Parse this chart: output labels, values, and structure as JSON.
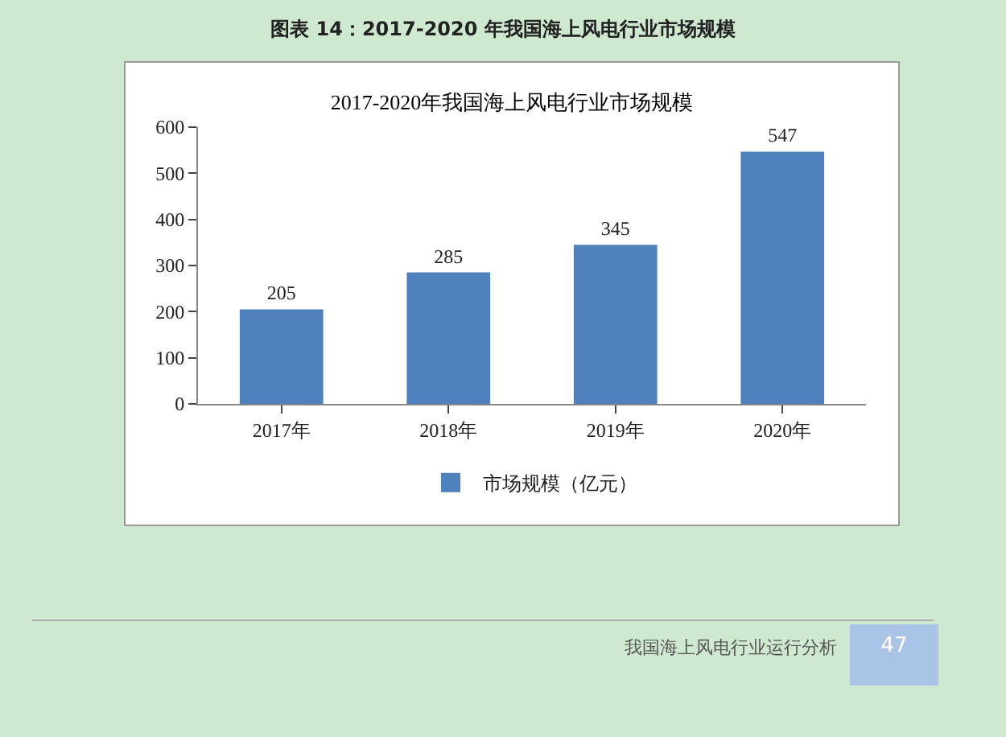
{
  "chart_data": {
    "type": "bar",
    "title": "2017-2020年我国海上风电行业市场规模",
    "categories": [
      "2017年",
      "2018年",
      "2019年",
      "2020年"
    ],
    "series": [
      {
        "name": "市场规模（亿元）",
        "color": "#4f81bd",
        "values": [
          205,
          285,
          345,
          547
        ]
      }
    ],
    "ylim": [
      0,
      600
    ],
    "yticks": [
      0,
      100,
      200,
      300,
      400,
      500,
      600
    ],
    "grid": false,
    "legend": "bottom",
    "data_labels": true,
    "annotations": [
      "图表 14：2017-2020 年我国海上风电行业市场规模",
      "我国海上风电行业运行分析",
      "47"
    ]
  }
}
